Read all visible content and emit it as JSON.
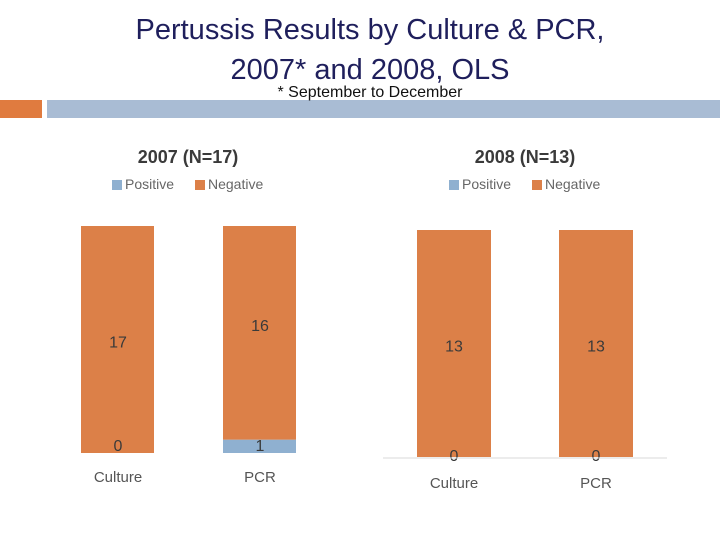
{
  "slide": {
    "title_line1": "Pertussis Results by Culture & PCR,",
    "title_line2": "2007* and 2008, OLS",
    "footnote": "*  September to December",
    "colors": {
      "accent_orange": "#e07b3f",
      "accent_blue": "#a9bcd4"
    }
  },
  "chart_data": [
    {
      "type": "bar",
      "stacked": true,
      "title": "2007 (N=17)",
      "categories": [
        "Culture",
        "PCR"
      ],
      "series": [
        {
          "name": "Positive",
          "values": [
            0,
            1
          ],
          "color": "#8fb0d0"
        },
        {
          "name": "Negative",
          "values": [
            17,
            16
          ],
          "color": "#dc8048"
        }
      ],
      "legend": "top"
    },
    {
      "type": "bar",
      "stacked": true,
      "title": "2008 (N=13)",
      "categories": [
        "Culture",
        "PCR"
      ],
      "series": [
        {
          "name": "Positive",
          "values": [
            0,
            0
          ],
          "color": "#8fb0d0"
        },
        {
          "name": "Negative",
          "values": [
            13,
            13
          ],
          "color": "#dc8048"
        }
      ],
      "legend": "top"
    }
  ]
}
